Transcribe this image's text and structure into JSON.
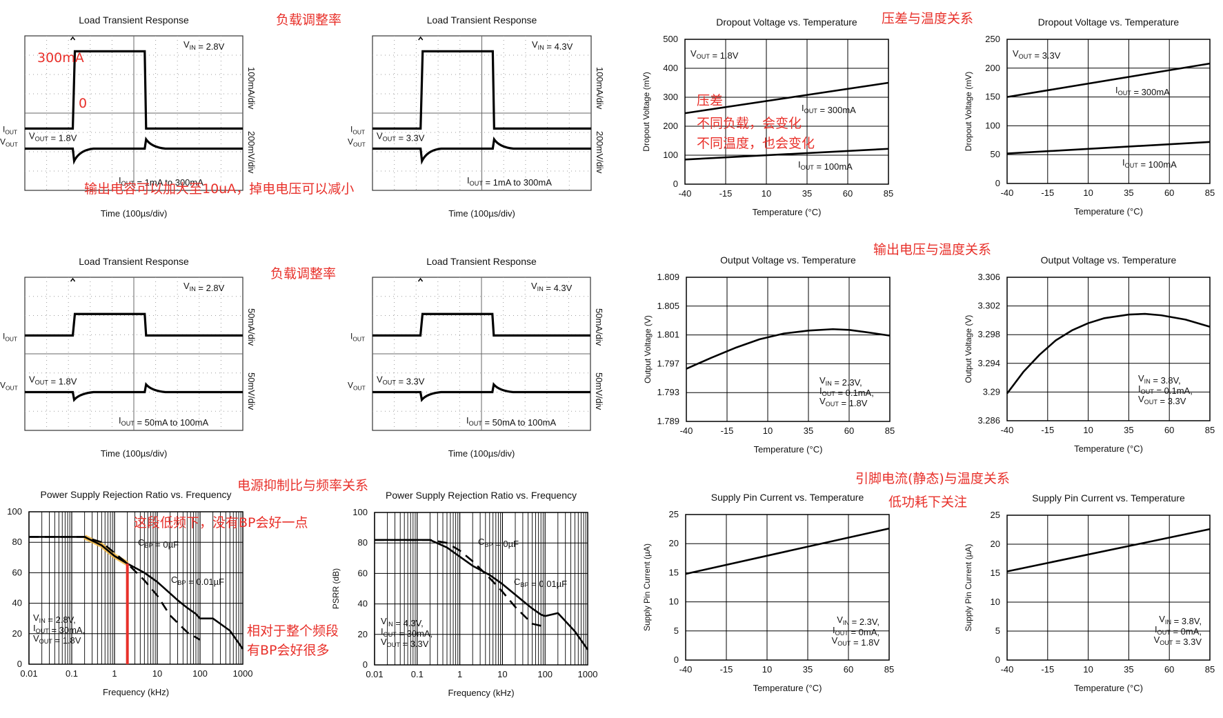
{
  "annotations": {
    "load_reg_1": "负载调整率",
    "load_reg_2": "负载调整率",
    "level_300ma": "300mA",
    "level_0": "0",
    "output_cap": "输出电容可以加大至10uA，掉电电压可以减小",
    "dropout_temp": "压差与温度关系",
    "dropout_note_1": "压差",
    "dropout_note_2": "不同负载，会变化",
    "dropout_note_3": "不同温度，也会变化",
    "vout_temp": "输出电压与温度关系",
    "psrr_freq": "电源抑制比与频率关系",
    "psrr_low_freq": "这段低频下，没有BP会好一点",
    "psrr_full_1": "相对于整个频段",
    "psrr_full_2": "有BP会好很多",
    "pin_current_temp": "引脚电流(静态)与温度关系",
    "low_power": "低功耗下关注"
  },
  "colors": {
    "annotation": "#e8302a",
    "trace": "#000000",
    "highlight_band": "#f5b942",
    "marker_line": "#e8302a"
  },
  "chart_data": [
    {
      "type": "line",
      "title": "Load Transient Response",
      "xlabel": "Time (100µs/div)",
      "right_labels": [
        "100mA/div",
        "200mV/div"
      ],
      "iout_label": "IOUT",
      "vout_label": "VOUT",
      "conditions": [
        "VIN = 2.8V",
        "VOUT = 1.8V",
        "IOUT = 1mA to 300mA"
      ],
      "divisions": [
        10,
        8
      ],
      "step_start_div": 2.2,
      "step_end_div": 5.5
    },
    {
      "type": "line",
      "title": "Load Transient Response",
      "xlabel": "Time (100µs/div)",
      "right_labels": [
        "100mA/div",
        "200mV/div"
      ],
      "iout_label": "IOUT",
      "vout_label": "VOUT",
      "conditions": [
        "VIN = 4.3V",
        "VOUT = 3.3V",
        "IOUT = 1mA to 300mA"
      ],
      "divisions": [
        10,
        8
      ],
      "step_start_div": 2.2,
      "step_end_div": 5.5
    },
    {
      "type": "line",
      "title": "Load Transient Response",
      "xlabel": "Time (100µs/div)",
      "right_labels": [
        "50mA/div",
        "50mV/div"
      ],
      "iout_label": "IOUT",
      "vout_label": "VOUT",
      "conditions": [
        "VIN = 2.8V",
        "VOUT = 1.8V",
        "IOUT = 50mA to 100mA"
      ],
      "divisions": [
        10,
        8
      ],
      "step_start_div": 2.2,
      "step_end_div": 5.5
    },
    {
      "type": "line",
      "title": "Load Transient Response",
      "xlabel": "Time (100µs/div)",
      "right_labels": [
        "50mA/div",
        "50mV/div"
      ],
      "iout_label": "IOUT",
      "vout_label": "VOUT",
      "conditions": [
        "VIN = 4.3V",
        "VOUT = 3.3V",
        "IOUT = 50mA to 100mA"
      ],
      "divisions": [
        10,
        8
      ],
      "step_start_div": 2.2,
      "step_end_div": 5.5
    },
    {
      "type": "line",
      "title": "Dropout Voltage vs. Temperature",
      "xlabel": "Temperature (°C)",
      "ylabel": "Dropout Voltage (mV)",
      "x_ticks": [
        -40,
        -15,
        10,
        35,
        60,
        85
      ],
      "y_ticks": [
        0,
        100,
        200,
        300,
        400,
        500
      ],
      "xlim": [
        -40,
        85
      ],
      "ylim": [
        0,
        500
      ],
      "condition": "VOUT = 1.8V",
      "series": [
        {
          "name": "IOUT = 300mA",
          "x": [
            -40,
            85
          ],
          "y": [
            245,
            350
          ]
        },
        {
          "name": "IOUT = 100mA",
          "x": [
            -40,
            85
          ],
          "y": [
            85,
            122
          ]
        }
      ]
    },
    {
      "type": "line",
      "title": "Dropout Voltage vs. Temperature",
      "xlabel": "Temperature (°C)",
      "ylabel": "Dropout Voltage (mV)",
      "x_ticks": [
        -40,
        -15,
        10,
        35,
        60,
        85
      ],
      "y_ticks": [
        0,
        50,
        100,
        150,
        200,
        250
      ],
      "xlim": [
        -40,
        85
      ],
      "ylim": [
        0,
        250
      ],
      "condition": "VOUT = 3.3V",
      "series": [
        {
          "name": "IOUT = 300mA",
          "x": [
            -40,
            85
          ],
          "y": [
            150,
            208
          ]
        },
        {
          "name": "IOUT = 100mA",
          "x": [
            -40,
            85
          ],
          "y": [
            52,
            72
          ]
        }
      ]
    },
    {
      "type": "line",
      "title": "Output Voltage vs. Temperature",
      "xlabel": "Temperature (°C)",
      "ylabel": "Output Voltage (V)",
      "x_ticks": [
        -40,
        -15,
        10,
        35,
        60,
        85
      ],
      "y_ticks": [
        1.789,
        1.793,
        1.797,
        1.801,
        1.805,
        1.809
      ],
      "xlim": [
        -40,
        85
      ],
      "ylim": [
        1.789,
        1.809
      ],
      "conditions": [
        "VIN = 2.3V,",
        "IOUT = 0.1mA,",
        "VOUT = 1.8V"
      ],
      "series": [
        {
          "name": "",
          "x": [
            -40,
            -25,
            -10,
            5,
            20,
            35,
            50,
            60,
            70,
            85
          ],
          "y": [
            1.7963,
            1.7978,
            1.7992,
            1.8004,
            1.8012,
            1.8016,
            1.8018,
            1.8017,
            1.8014,
            1.8009
          ]
        }
      ]
    },
    {
      "type": "line",
      "title": "Output Voltage vs. Temperature",
      "xlabel": "Temperature (°C)",
      "ylabel": "Output Voltage (V)",
      "x_ticks": [
        -40,
        -15,
        10,
        35,
        60,
        85
      ],
      "y_ticks": [
        3.286,
        3.29,
        3.294,
        3.298,
        3.302,
        3.306
      ],
      "xlim": [
        -40,
        85
      ],
      "ylim": [
        3.286,
        3.306
      ],
      "conditions": [
        "VIN = 3.8V,",
        "IOUT = 0.1mA,",
        "VOUT = 3.3V"
      ],
      "series": [
        {
          "name": "",
          "x": [
            -40,
            -30,
            -20,
            -10,
            0,
            10,
            20,
            35,
            45,
            55,
            70,
            85
          ],
          "y": [
            3.2898,
            3.2928,
            3.2952,
            3.2972,
            3.2986,
            3.2996,
            3.3003,
            3.3008,
            3.3009,
            3.3007,
            3.3001,
            3.2991
          ]
        }
      ]
    },
    {
      "type": "line",
      "title": "Power Supply Rejection Ratio vs. Frequency",
      "xlabel": "Frequency (kHz)",
      "ylabel": "",
      "x_ticks": [
        0.01,
        0.1,
        1,
        10,
        100,
        1000
      ],
      "y_ticks": [
        0,
        20,
        40,
        60,
        80,
        100
      ],
      "xlim": [
        0.01,
        1000
      ],
      "ylim": [
        0,
        100
      ],
      "x_scale": "log",
      "conditions": [
        "VIN = 2.8V,",
        "IOUT = 30mA,",
        "VOUT = 1.8V"
      ],
      "series": [
        {
          "name": "CBP = 0µF",
          "style": "dashed",
          "x": [
            0.01,
            0.2,
            0.5,
            1,
            2,
            5,
            10,
            20,
            50,
            100
          ],
          "y": [
            83.5,
            83.5,
            80,
            73,
            66,
            55,
            45,
            32,
            21,
            16
          ]
        },
        {
          "name": "CBP = 0.01µF",
          "style": "solid",
          "x": [
            0.01,
            0.2,
            0.5,
            1,
            2,
            5,
            10,
            30,
            50,
            80,
            100,
            200,
            500,
            1000
          ],
          "y": [
            83.5,
            83.5,
            78,
            71,
            66,
            60,
            54,
            42,
            37,
            33,
            30,
            30,
            22,
            10
          ]
        }
      ],
      "marker_x": 2,
      "band_x": [
        0.2,
        2
      ]
    },
    {
      "type": "line",
      "title": "Power Supply Rejection Ratio vs. Frequency",
      "xlabel": "Frequency (kHz)",
      "ylabel": "PSRR (dB)",
      "x_ticks": [
        0.01,
        0.1,
        1,
        10,
        100,
        1000
      ],
      "y_ticks": [
        0,
        20,
        40,
        60,
        80,
        100
      ],
      "xlim": [
        0.01,
        1000
      ],
      "ylim": [
        0,
        100
      ],
      "x_scale": "log",
      "conditions": [
        "VIN = 4.3V,",
        "IOUT = 30mA,",
        "VOUT = 3.3V"
      ],
      "series": [
        {
          "name": "CBP = 0µF",
          "style": "dashed",
          "x": [
            0.01,
            0.2,
            0.5,
            1,
            2,
            5,
            10,
            20,
            50,
            100
          ],
          "y": [
            82,
            82,
            80,
            75,
            68,
            57,
            48,
            38,
            27,
            25
          ]
        },
        {
          "name": "CBP = 0.01µF",
          "style": "solid",
          "x": [
            0.01,
            0.2,
            0.5,
            1,
            2,
            5,
            10,
            30,
            50,
            80,
            100,
            200,
            500,
            1000
          ],
          "y": [
            82,
            82,
            77,
            71,
            65,
            59,
            53,
            42,
            37,
            33,
            32,
            34,
            22,
            10
          ]
        }
      ]
    },
    {
      "type": "line",
      "title": "Supply Pin Current vs. Temperature",
      "xlabel": "Temperature (°C)",
      "ylabel": "Supply Pin Current (µA)",
      "x_ticks": [
        -40,
        -15,
        10,
        35,
        60,
        85
      ],
      "y_ticks": [
        0,
        5,
        10,
        15,
        20,
        25
      ],
      "xlim": [
        -40,
        85
      ],
      "ylim": [
        0,
        25
      ],
      "conditions": [
        "VIN = 2.3V,",
        "IOUT = 0mA,",
        "VOUT = 1.8V"
      ],
      "series": [
        {
          "name": "",
          "x": [
            -40,
            85
          ],
          "y": [
            14.8,
            22.6
          ]
        }
      ]
    },
    {
      "type": "line",
      "title": "Supply Pin Current vs. Temperature",
      "xlabel": "Temperature (°C)",
      "ylabel": "Supply Pin Current (µA)",
      "x_ticks": [
        -40,
        -15,
        10,
        35,
        60,
        85
      ],
      "y_ticks": [
        0,
        5,
        10,
        15,
        20,
        25
      ],
      "xlim": [
        -40,
        85
      ],
      "ylim": [
        0,
        25
      ],
      "conditions": [
        "VIN = 3.8V,",
        "IOUT = 0mA,",
        "VOUT = 3.3V"
      ],
      "series": [
        {
          "name": "",
          "x": [
            -40,
            85
          ],
          "y": [
            15.3,
            22.6
          ]
        }
      ]
    }
  ]
}
